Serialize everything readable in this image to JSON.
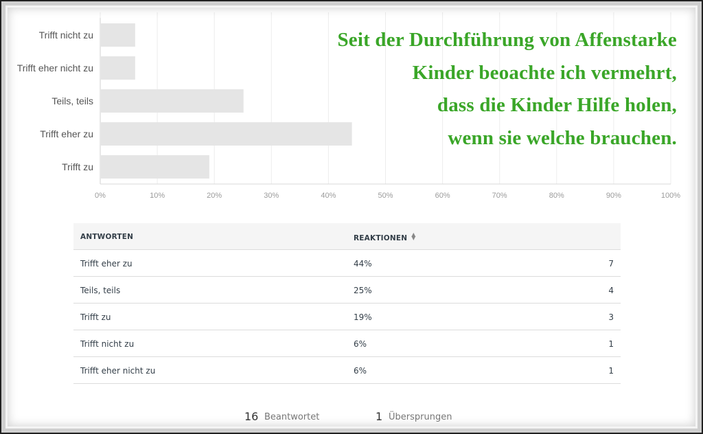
{
  "chart_data": {
    "type": "bar",
    "orientation": "horizontal",
    "categories": [
      "Trifft nicht zu",
      "Trifft eher nicht zu",
      "Teils, teils",
      "Trifft eher zu",
      "Trifft zu"
    ],
    "values": [
      6,
      6,
      25,
      44,
      19
    ],
    "unit": "%",
    "xlim": [
      0,
      100
    ],
    "xticks": [
      "0%",
      "10%",
      "20%",
      "30%",
      "40%",
      "50%",
      "60%",
      "70%",
      "80%",
      "90%",
      "100%"
    ],
    "grid": "vertical",
    "bar_color": "#e5e5e5",
    "title": ""
  },
  "quote": {
    "lines": [
      "Seit der Durchführung von Affenstarke",
      "Kinder beoachte ich vermehrt,",
      "dass die Kinder Hilfe holen,",
      "wenn sie welche brauchen."
    ],
    "color": "#3aa628"
  },
  "table": {
    "header": {
      "answers": "ANTWORTEN",
      "reactions": "REAKTIONEN"
    },
    "rows": [
      {
        "answer": "Trifft eher zu",
        "percent": "44%",
        "count": "7"
      },
      {
        "answer": "Teils, teils",
        "percent": "25%",
        "count": "4"
      },
      {
        "answer": "Trifft zu",
        "percent": "19%",
        "count": "3"
      },
      {
        "answer": "Trifft nicht zu",
        "percent": "6%",
        "count": "1"
      },
      {
        "answer": "Trifft eher nicht zu",
        "percent": "6%",
        "count": "1"
      }
    ]
  },
  "summary": {
    "answered_count": "16",
    "answered_label": "Beantwortet",
    "skipped_count": "1",
    "skipped_label": "Übersprungen"
  }
}
